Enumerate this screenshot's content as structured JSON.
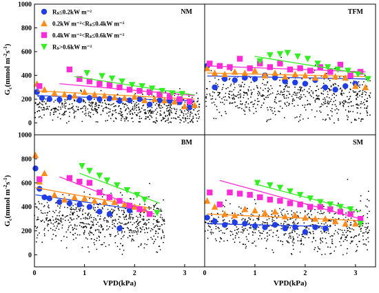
{
  "colors": {
    "blue": "#1f3ee6",
    "orange": "#ff8c1a",
    "magenta": "#ff2bd6",
    "green": "#33ee22",
    "scatter": "#000000"
  },
  "axes": {
    "ylabel": "G",
    "ylabel_sub": "c",
    "ylabel_unit": "(mmol m",
    "ylabel_sup1": "-2",
    "ylabel_mid": "s",
    "ylabel_sup2": "-1",
    "ylabel_close": ")",
    "xlabel": "VPD(kPa)",
    "y_ticks": [
      "0",
      "200",
      "400",
      "600",
      "800",
      "1000"
    ],
    "x_ticks": [
      "0",
      "1",
      "2",
      "3"
    ]
  },
  "legend": {
    "items": [
      {
        "key": "blue",
        "marker": "circle",
        "label": "Rₛ≤0.2kW m⁻²"
      },
      {
        "key": "orange",
        "marker": "triangle-up",
        "label": "0.2kW m⁻²<Rₛ≤0.4kW m⁻²"
      },
      {
        "key": "magenta",
        "marker": "square",
        "label": "0.4kW m⁻²<Rₛ≤0.6kW m⁻²"
      },
      {
        "key": "green",
        "marker": "triangle-down",
        "label": "Rₛ>0.6kW m⁻²"
      }
    ]
  },
  "chart_data": [
    {
      "type": "scatter",
      "panel": "NM",
      "xlim": [
        0,
        3.4
      ],
      "ylim": [
        -100,
        1000
      ],
      "cloud": {
        "y_center": 90,
        "y_spread": 160,
        "x_max": 3.3
      },
      "series": [
        {
          "key": "blue",
          "marker": "circle",
          "x": [
            0.05,
            0.15,
            0.3,
            0.5,
            0.7,
            0.9,
            1.1,
            1.3,
            1.5,
            1.7,
            1.9,
            2.1,
            2.3,
            2.5,
            2.7,
            2.9,
            3.1
          ],
          "y": [
            260,
            210,
            200,
            195,
            215,
            190,
            210,
            200,
            205,
            185,
            190,
            200,
            155,
            190,
            185,
            175,
            130
          ],
          "fit": [
            [
              0.05,
              230
            ],
            [
              3.2,
              185
            ]
          ]
        },
        {
          "key": "orange",
          "marker": "triangle-up",
          "x": [
            0.05,
            0.2,
            0.4,
            0.6,
            0.8,
            1.0,
            1.2,
            1.4,
            1.6,
            1.8,
            2.0,
            2.2,
            2.4,
            2.6,
            2.8,
            3.0,
            3.2
          ],
          "y": [
            330,
            280,
            250,
            240,
            230,
            260,
            240,
            230,
            215,
            210,
            220,
            190,
            200,
            190,
            180,
            140,
            150
          ],
          "fit": [
            [
              0.05,
              270
            ],
            [
              3.2,
              200
            ]
          ]
        },
        {
          "key": "magenta",
          "marker": "square",
          "x": [
            0.1,
            0.7,
            0.9,
            1.1,
            1.3,
            1.5,
            1.7,
            1.9,
            2.1,
            2.3,
            2.5,
            2.7,
            2.9,
            3.1
          ],
          "y": [
            310,
            450,
            370,
            350,
            330,
            320,
            300,
            280,
            270,
            260,
            240,
            220,
            200,
            180
          ],
          "fit": [
            [
              0.5,
              330
            ],
            [
              3.2,
              230
            ]
          ]
        },
        {
          "key": "green",
          "marker": "triangle-down",
          "x": [
            1.05,
            1.35,
            1.55,
            1.75,
            1.95,
            2.15,
            2.35,
            2.55,
            2.75,
            2.95
          ],
          "y": [
            420,
            395,
            375,
            350,
            320,
            310,
            290,
            270,
            250,
            245
          ],
          "fit": [
            [
              0.8,
              390
            ],
            [
              3.2,
              235
            ]
          ]
        }
      ]
    },
    {
      "type": "scatter",
      "panel": "TFM",
      "xlim": [
        0,
        3.4
      ],
      "ylim": [
        -100,
        1000
      ],
      "cloud": {
        "y_center": 180,
        "y_spread": 230,
        "x_max": 3.3
      },
      "series": [
        {
          "key": "blue",
          "marker": "circle",
          "x": [
            0.05,
            0.2,
            0.4,
            0.6,
            0.8,
            1.0,
            1.2,
            1.4,
            1.6,
            1.8,
            2.0,
            2.2,
            2.4,
            2.6,
            2.8,
            3.0
          ],
          "y": [
            480,
            300,
            370,
            360,
            380,
            370,
            400,
            380,
            350,
            340,
            330,
            360,
            300,
            280,
            310,
            330
          ],
          "fit": [
            [
              0.05,
              395
            ],
            [
              3.2,
              370
            ]
          ]
        },
        {
          "key": "orange",
          "marker": "triangle-up",
          "x": [
            0.05,
            0.2,
            0.4,
            0.6,
            0.8,
            1.0,
            1.2,
            1.4,
            1.6,
            1.8,
            2.0,
            2.2,
            2.4,
            2.6,
            2.8,
            3.0,
            3.2
          ],
          "y": [
            460,
            420,
            410,
            430,
            420,
            440,
            400,
            420,
            390,
            410,
            400,
            380,
            400,
            390,
            380,
            310,
            300
          ],
          "fit": [
            [
              0.05,
              420
            ],
            [
              3.2,
              390
            ]
          ]
        },
        {
          "key": "magenta",
          "marker": "square",
          "x": [
            0.1,
            0.3,
            0.5,
            0.7,
            0.9,
            1.1,
            1.3,
            1.5,
            1.7,
            1.9,
            2.1,
            2.3,
            2.5,
            2.7,
            2.9,
            3.1
          ],
          "y": [
            500,
            480,
            470,
            540,
            460,
            500,
            470,
            500,
            450,
            460,
            440,
            470,
            430,
            490,
            400,
            430
          ],
          "fit": [
            [
              0.05,
              480
            ],
            [
              3.2,
              430
            ]
          ]
        },
        {
          "key": "green",
          "marker": "triangle-down",
          "x": [
            1.1,
            1.3,
            1.5,
            1.65,
            1.85,
            2.05,
            2.25,
            2.45,
            2.65,
            2.85,
            3.05,
            3.25
          ],
          "y": [
            520,
            570,
            580,
            590,
            560,
            540,
            500,
            470,
            450,
            440,
            410,
            370
          ],
          "fit": [
            [
              1.0,
              560
            ],
            [
              3.2,
              410
            ]
          ]
        }
      ]
    },
    {
      "type": "scatter",
      "panel": "BM",
      "xlim": [
        0,
        3.4
      ],
      "ylim": [
        -100,
        1000
      ],
      "cloud": {
        "y_center": 230,
        "y_spread": 240,
        "x_max": 2.6
      },
      "series": [
        {
          "key": "blue",
          "marker": "circle",
          "x": [
            0.02,
            0.1,
            0.2,
            0.3,
            0.5,
            0.7,
            0.9,
            1.1,
            1.3,
            1.5,
            1.7,
            1.9
          ],
          "y": [
            720,
            550,
            480,
            470,
            440,
            430,
            420,
            400,
            360,
            340,
            220,
            370
          ],
          "fit": [
            [
              0.02,
              500
            ],
            [
              2.0,
              380
            ]
          ]
        },
        {
          "key": "orange",
          "marker": "triangle-up",
          "x": [
            0.02,
            0.1,
            0.2,
            0.4,
            0.6,
            0.8,
            1.0,
            1.2,
            1.4,
            1.6,
            1.8,
            2.0,
            2.2
          ],
          "y": [
            830,
            610,
            680,
            500,
            460,
            480,
            470,
            450,
            440,
            440,
            420,
            400,
            380
          ],
          "fit": [
            [
              0.02,
              560
            ],
            [
              2.3,
              390
            ]
          ]
        },
        {
          "key": "magenta",
          "marker": "square",
          "x": [
            0.1,
            0.7,
            0.9,
            1.1,
            1.3,
            1.5,
            1.7,
            1.9,
            2.1,
            2.3
          ],
          "y": [
            630,
            640,
            610,
            600,
            520,
            480,
            450,
            410,
            380,
            340
          ],
          "fit": [
            [
              0.5,
              650
            ],
            [
              2.4,
              340
            ]
          ]
        },
        {
          "key": "green",
          "marker": "triangle-down",
          "x": [
            0.95,
            1.1,
            1.3,
            1.45,
            1.65,
            1.85,
            2.05,
            2.2,
            2.45
          ],
          "y": [
            740,
            700,
            660,
            620,
            580,
            540,
            500,
            460,
            350
          ],
          "fit": [
            [
              0.9,
              680
            ],
            [
              2.5,
              430
            ]
          ]
        }
      ]
    },
    {
      "type": "scatter",
      "panel": "SM",
      "xlim": [
        0,
        3.4
      ],
      "ylim": [
        -100,
        1000
      ],
      "cloud": {
        "y_center": 180,
        "y_spread": 240,
        "x_max": 3.3
      },
      "series": [
        {
          "key": "blue",
          "marker": "circle",
          "x": [
            0.05,
            0.2,
            0.4,
            0.6,
            0.8,
            1.0,
            1.2,
            1.4,
            1.6,
            1.8,
            2.0,
            2.2,
            2.4
          ],
          "y": [
            310,
            280,
            250,
            270,
            260,
            240,
            230,
            250,
            220,
            230,
            190,
            230,
            220
          ],
          "fit": [
            [
              0.05,
              260
            ],
            [
              2.5,
              235
            ]
          ]
        },
        {
          "key": "orange",
          "marker": "triangle-up",
          "x": [
            0.05,
            0.2,
            0.4,
            0.6,
            0.8,
            1.0,
            1.2,
            1.4,
            1.6,
            1.8,
            2.0,
            2.2,
            2.4,
            2.6,
            2.8,
            3.0
          ],
          "y": [
            450,
            400,
            340,
            330,
            380,
            370,
            350,
            360,
            320,
            330,
            310,
            300,
            300,
            280,
            260,
            260
          ],
          "fit": [
            [
              0.05,
              340
            ],
            [
              3.1,
              285
            ]
          ]
        },
        {
          "key": "magenta",
          "marker": "square",
          "x": [
            0.1,
            0.3,
            0.5,
            0.7,
            0.9,
            1.1,
            1.3,
            1.5,
            1.7,
            1.9,
            2.1,
            2.3,
            2.5,
            2.7,
            2.9,
            3.1
          ],
          "y": [
            520,
            420,
            520,
            510,
            500,
            480,
            460,
            450,
            430,
            420,
            400,
            400,
            380,
            360,
            340,
            300
          ],
          "fit": [
            [
              0.3,
              620
            ],
            [
              3.1,
              300
            ]
          ]
        },
        {
          "key": "green",
          "marker": "triangle-down",
          "x": [
            1.05,
            1.3,
            1.5,
            1.7,
            1.9,
            2.1,
            2.3,
            2.5,
            2.7,
            2.9,
            3.1
          ],
          "y": [
            600,
            580,
            560,
            530,
            500,
            470,
            440,
            420,
            400,
            380,
            260
          ],
          "fit": [
            [
              1.0,
              590
            ],
            [
              3.1,
              360
            ]
          ]
        }
      ]
    }
  ]
}
